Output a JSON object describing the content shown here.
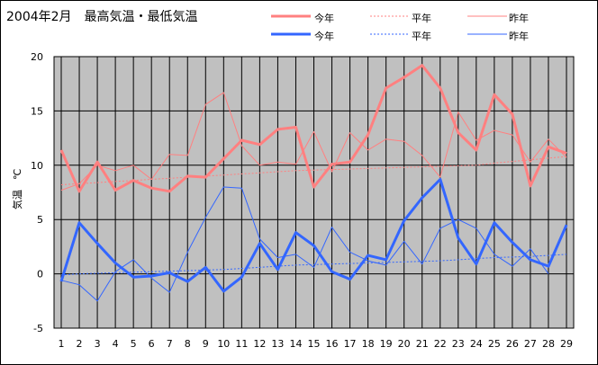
{
  "chart_data": {
    "type": "line",
    "title": "2004年2月　最高気温・最低気温",
    "ylabel": "気温　℃",
    "xlabel": "",
    "ylim": [
      -5,
      20
    ],
    "yticks": [
      -5,
      0,
      5,
      10,
      15,
      20
    ],
    "x": [
      1,
      2,
      3,
      4,
      5,
      6,
      7,
      8,
      9,
      10,
      11,
      12,
      13,
      14,
      15,
      16,
      17,
      18,
      19,
      20,
      21,
      22,
      23,
      24,
      25,
      26,
      27,
      28,
      29
    ],
    "grid": true,
    "legend_position": "top-right",
    "colors": {
      "high": "#ff8080",
      "low": "#3366ff",
      "plot_bg": "#c0c0c0"
    },
    "series": [
      {
        "name": "今年",
        "group": "high",
        "style": "thick",
        "values": [
          11.4,
          7.6,
          10.3,
          7.7,
          8.6,
          7.9,
          7.6,
          9.0,
          8.9,
          10.6,
          12.3,
          11.9,
          13.3,
          13.5,
          8.0,
          10.1,
          10.3,
          12.8,
          17.1,
          18.1,
          19.2,
          17.1,
          13.0,
          11.4,
          16.5,
          14.7,
          8.1,
          11.7,
          11.1
        ]
      },
      {
        "name": "平年",
        "group": "high",
        "style": "dotted",
        "values": [
          8.2,
          8.3,
          8.4,
          8.5,
          8.6,
          8.7,
          8.8,
          8.9,
          9.0,
          9.1,
          9.2,
          9.3,
          9.4,
          9.5,
          9.55,
          9.6,
          9.65,
          9.7,
          9.75,
          9.8,
          9.85,
          9.9,
          9.95,
          10.0,
          10.2,
          10.35,
          10.5,
          10.65,
          10.8
        ]
      },
      {
        "name": "昨年",
        "group": "high",
        "style": "thin",
        "values": [
          7.7,
          8.3,
          10.0,
          9.5,
          10.0,
          8.7,
          11.0,
          10.9,
          15.6,
          16.7,
          11.8,
          10.0,
          10.3,
          10.1,
          13.1,
          9.4,
          13.0,
          11.4,
          12.4,
          12.2,
          10.9,
          8.9,
          14.9,
          12.3,
          13.2,
          12.8,
          10.3,
          12.4,
          10.7
        ]
      },
      {
        "name": "今年",
        "group": "low",
        "style": "thick",
        "values": [
          -0.7,
          4.7,
          2.8,
          1.0,
          -0.3,
          -0.2,
          0.1,
          -0.7,
          0.6,
          -1.6,
          -0.3,
          2.8,
          0.4,
          3.8,
          2.6,
          0.2,
          -0.5,
          1.7,
          1.3,
          4.9,
          7.0,
          8.7,
          3.3,
          0.9,
          4.7,
          2.9,
          1.3,
          0.7,
          4.5
        ]
      },
      {
        "name": "平年",
        "group": "low",
        "style": "dotted",
        "values": [
          -0.1,
          0.0,
          0.05,
          0.1,
          0.15,
          0.2,
          0.25,
          0.3,
          0.35,
          0.4,
          0.5,
          0.6,
          0.7,
          0.8,
          0.85,
          0.9,
          0.95,
          1.0,
          1.05,
          1.1,
          1.15,
          1.2,
          1.3,
          1.4,
          1.5,
          1.55,
          1.6,
          1.7,
          1.8
        ]
      },
      {
        "name": "昨年",
        "group": "low",
        "style": "thin",
        "values": [
          -0.6,
          -1.0,
          -2.5,
          0.2,
          1.3,
          -0.4,
          -1.7,
          2.0,
          5.2,
          8.0,
          7.9,
          3.2,
          1.5,
          1.8,
          0.6,
          4.3,
          2.0,
          1.2,
          0.8,
          3.0,
          0.9,
          4.2,
          5.0,
          4.2,
          1.8,
          0.7,
          2.3,
          0.0,
          null
        ]
      }
    ]
  }
}
